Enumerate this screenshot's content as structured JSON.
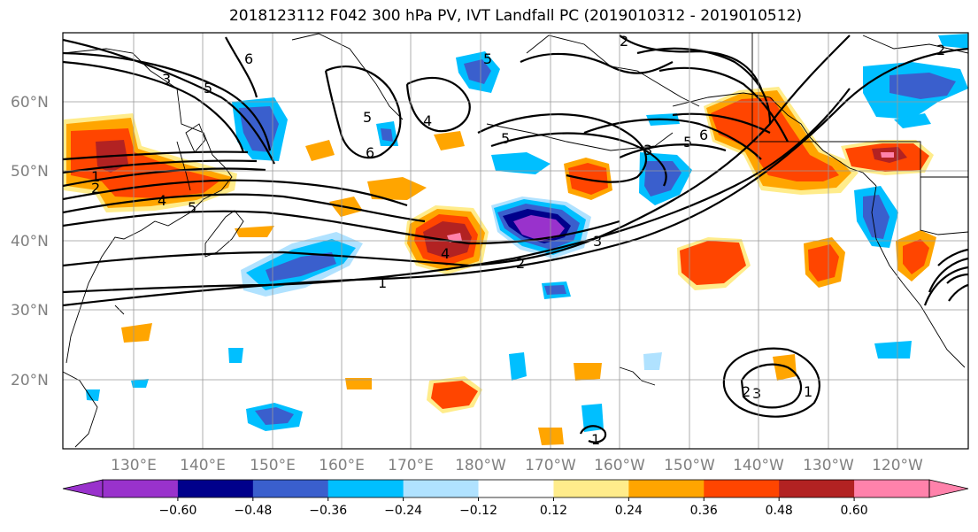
{
  "title": "2018123112 F042 300 hPa PV, IVT Landfall PC (2019010312 - 2019010512)",
  "lat_labels": [
    "60°N",
    "50°N",
    "40°N",
    "30°N",
    "20°N"
  ],
  "lon_labels": [
    "130°E",
    "140°E",
    "150°E",
    "160°E",
    "170°E",
    "180°W",
    "170°W",
    "160°W",
    "150°W",
    "140°W",
    "130°W",
    "120°W"
  ],
  "colorbar": {
    "ticks": [
      "−0.60",
      "−0.48",
      "−0.36",
      "−0.24",
      "−0.12",
      "0.12",
      "0.24",
      "0.36",
      "0.48",
      "0.60"
    ],
    "colors": [
      "#9932CC",
      "#00008B",
      "#3A5FCD",
      "#00BFFF",
      "#B0E2FF",
      "#FFFFFF",
      "#FFEC8B",
      "#FFA500",
      "#FF4500",
      "#B22222",
      "#FF82AB"
    ]
  },
  "contour_labels": [
    "1",
    "2",
    "3",
    "4",
    "5",
    "6"
  ],
  "colors": {
    "pos_weak": "#FFEC8B",
    "pos_mid": "#FFA500",
    "pos_strong": "#FF4500",
    "pos_strongest": "#B22222",
    "pos_max": "#FF82AB",
    "neg_weak": "#B0E2FF",
    "neg_mid": "#00BFFF",
    "neg_strong": "#3A5FCD",
    "neg_strongest": "#00008B",
    "neg_max": "#9932CC"
  }
}
